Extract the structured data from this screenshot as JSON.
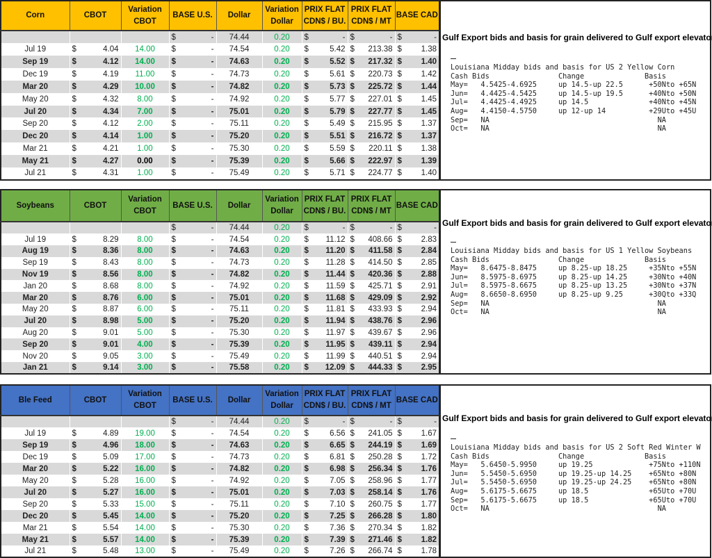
{
  "columns": [
    "CBOT",
    "Variation CBOT",
    "BASE U.S.",
    "Dollar",
    "Variation Dollar",
    "PRIX FLAT CDN$ / BU.",
    "PRIX FLAT CDN$ / MT",
    "BASE CAD"
  ],
  "columns_split": [
    [
      "CBOT"
    ],
    [
      "Variation",
      "CBOT"
    ],
    [
      "BASE U.S."
    ],
    [
      "Dollar"
    ],
    [
      "Variation",
      "Dollar"
    ],
    [
      "PRIX FLAT",
      "CDN$ / BU."
    ],
    [
      "PRIX FLAT",
      "CDN$ / MT"
    ],
    [
      "BASE CAD"
    ]
  ],
  "currency_symbol": "$",
  "dash": "-",
  "sections": [
    {
      "label": "Corn",
      "header_color": "#FFC000",
      "top_row": {
        "dollar": "74.44",
        "var_dollar": "0.20"
      },
      "rows": [
        {
          "month": "Jul 19",
          "cbot": "4.04",
          "var_cbot": "14.00",
          "dollar": "74.54",
          "var_dollar": "0.20",
          "bu": "5.42",
          "mt": "213.38",
          "cad": "1.38"
        },
        {
          "month": "Sep 19",
          "cbot": "4.12",
          "var_cbot": "14.00",
          "dollar": "74.63",
          "var_dollar": "0.20",
          "bu": "5.52",
          "mt": "217.32",
          "cad": "1.40"
        },
        {
          "month": "Dec 19",
          "cbot": "4.19",
          "var_cbot": "11.00",
          "dollar": "74.73",
          "var_dollar": "0.20",
          "bu": "5.61",
          "mt": "220.73",
          "cad": "1.42"
        },
        {
          "month": "Mar 20",
          "cbot": "4.29",
          "var_cbot": "10.00",
          "dollar": "74.82",
          "var_dollar": "0.20",
          "bu": "5.73",
          "mt": "225.72",
          "cad": "1.44"
        },
        {
          "month": "May 20",
          "cbot": "4.32",
          "var_cbot": "8.00",
          "dollar": "74.92",
          "var_dollar": "0.20",
          "bu": "5.77",
          "mt": "227.01",
          "cad": "1.45"
        },
        {
          "month": "Jul 20",
          "cbot": "4.34",
          "var_cbot": "7.00",
          "dollar": "75.01",
          "var_dollar": "0.20",
          "bu": "5.79",
          "mt": "227.77",
          "cad": "1.45"
        },
        {
          "month": "Sep 20",
          "cbot": "4.12",
          "var_cbot": "2.00",
          "dollar": "75.11",
          "var_dollar": "0.20",
          "bu": "5.49",
          "mt": "215.95",
          "cad": "1.37"
        },
        {
          "month": "Dec 20",
          "cbot": "4.14",
          "var_cbot": "1.00",
          "dollar": "75.20",
          "var_dollar": "0.20",
          "bu": "5.51",
          "mt": "216.72",
          "cad": "1.37"
        },
        {
          "month": "Mar 21",
          "cbot": "4.21",
          "var_cbot": "1.00",
          "dollar": "75.30",
          "var_dollar": "0.20",
          "bu": "5.59",
          "mt": "220.11",
          "cad": "1.38"
        },
        {
          "month": "May 21",
          "cbot": "4.27",
          "var_cbot": "0.00",
          "dollar": "75.39",
          "var_dollar": "0.20",
          "bu": "5.66",
          "mt": "222.97",
          "cad": "1.39"
        },
        {
          "month": "Jul 21",
          "cbot": "4.31",
          "var_cbot": "1.00",
          "dollar": "75.49",
          "var_dollar": "0.20",
          "bu": "5.71",
          "mt": "224.77",
          "cad": "1.40"
        }
      ],
      "gulf": {
        "title": "Gulf Export bids and basis for grain delivered to Gulf export elevators",
        "heading": "Louisiana Midday bids and basis for US 2 Yellow Corn",
        "col_headers": {
          "bids": "Cash Bids",
          "change": "Change",
          "basis": "Basis"
        },
        "lines": [
          {
            "month": "May=",
            "bid": "4.5425-4.6925",
            "change": "up 14.5-up 22.5",
            "basis": "+50Nto +65N"
          },
          {
            "month": "Jun=",
            "bid": "4.4425-4.5425",
            "change": "up 14.5-up 19.5",
            "basis": "+40Nto +50N"
          },
          {
            "month": "Jul=",
            "bid": "4.4425-4.4925",
            "change": "up 14.5",
            "basis": "+40Nto +45N"
          },
          {
            "month": "Aug=",
            "bid": "4.4150-4.5750",
            "change": "up 12-up 14",
            "basis": "+29Uto +45U"
          },
          {
            "month": "Sep=",
            "bid": "NA",
            "change": "",
            "basis": "NA"
          },
          {
            "month": "Oct=",
            "bid": "NA",
            "change": "",
            "basis": "NA"
          }
        ]
      }
    },
    {
      "label": "Soybeans",
      "header_color": "#70AD47",
      "top_row": {
        "dollar": "74.44",
        "var_dollar": "0.20"
      },
      "rows": [
        {
          "month": "Jul 19",
          "cbot": "8.29",
          "var_cbot": "8.00",
          "dollar": "74.54",
          "var_dollar": "0.20",
          "bu": "11.12",
          "mt": "408.66",
          "cad": "2.83"
        },
        {
          "month": "Aug 19",
          "cbot": "8.36",
          "var_cbot": "8.00",
          "dollar": "74.63",
          "var_dollar": "0.20",
          "bu": "11.20",
          "mt": "411.58",
          "cad": "2.84"
        },
        {
          "month": "Sep 19",
          "cbot": "8.43",
          "var_cbot": "8.00",
          "dollar": "74.73",
          "var_dollar": "0.20",
          "bu": "11.28",
          "mt": "414.50",
          "cad": "2.85"
        },
        {
          "month": "Nov 19",
          "cbot": "8.56",
          "var_cbot": "8.00",
          "dollar": "74.82",
          "var_dollar": "0.20",
          "bu": "11.44",
          "mt": "420.36",
          "cad": "2.88"
        },
        {
          "month": "Jan 20",
          "cbot": "8.68",
          "var_cbot": "8.00",
          "dollar": "74.92",
          "var_dollar": "0.20",
          "bu": "11.59",
          "mt": "425.71",
          "cad": "2.91"
        },
        {
          "month": "Mar 20",
          "cbot": "8.76",
          "var_cbot": "6.00",
          "dollar": "75.01",
          "var_dollar": "0.20",
          "bu": "11.68",
          "mt": "429.09",
          "cad": "2.92"
        },
        {
          "month": "May 20",
          "cbot": "8.87",
          "var_cbot": "6.00",
          "dollar": "75.11",
          "var_dollar": "0.20",
          "bu": "11.81",
          "mt": "433.93",
          "cad": "2.94"
        },
        {
          "month": "Jul 20",
          "cbot": "8.98",
          "var_cbot": "5.00",
          "dollar": "75.20",
          "var_dollar": "0.20",
          "bu": "11.94",
          "mt": "438.76",
          "cad": "2.96"
        },
        {
          "month": "Aug 20",
          "cbot": "9.01",
          "var_cbot": "5.00",
          "dollar": "75.30",
          "var_dollar": "0.20",
          "bu": "11.97",
          "mt": "439.67",
          "cad": "2.96"
        },
        {
          "month": "Sep 20",
          "cbot": "9.01",
          "var_cbot": "4.00",
          "dollar": "75.39",
          "var_dollar": "0.20",
          "bu": "11.95",
          "mt": "439.11",
          "cad": "2.94"
        },
        {
          "month": "Nov 20",
          "cbot": "9.05",
          "var_cbot": "3.00",
          "dollar": "75.49",
          "var_dollar": "0.20",
          "bu": "11.99",
          "mt": "440.51",
          "cad": "2.94"
        },
        {
          "month": "Jan 21",
          "cbot": "9.14",
          "var_cbot": "3.00",
          "dollar": "75.58",
          "var_dollar": "0.20",
          "bu": "12.09",
          "mt": "444.33",
          "cad": "2.95"
        }
      ],
      "gulf": {
        "title": "Gulf Export bids and basis for grain delivered to Gulf export elevators",
        "heading": "Louisiana Midday bids and basis for US 1 Yellow Soybeans",
        "col_headers": {
          "bids": "Cash Bids",
          "change": "Change",
          "basis": "Basis"
        },
        "lines": [
          {
            "month": "May=",
            "bid": "8.6475-8.8475",
            "change": "up 8.25-up 18.25",
            "basis": "+35Nto +55N"
          },
          {
            "month": "Jun=",
            "bid": "8.5975-8.6975",
            "change": "up 8.25-up 14.25",
            "basis": "+30Nto +40N"
          },
          {
            "month": "Jul=",
            "bid": "8.5975-8.6675",
            "change": "up 8.25-up 13.25",
            "basis": "+30Nto +37N"
          },
          {
            "month": "Aug=",
            "bid": "8.6650-8.6950",
            "change": "up 8.25-up 9.25",
            "basis": "+30Qto +33Q"
          },
          {
            "month": "Sep=",
            "bid": "NA",
            "change": "",
            "basis": "NA"
          },
          {
            "month": "Oct=",
            "bid": "NA",
            "change": "",
            "basis": "NA"
          }
        ]
      }
    },
    {
      "label": "Ble Feed",
      "header_color": "#4472C4",
      "top_row": {
        "dollar": "74.44",
        "var_dollar": "0.20"
      },
      "rows": [
        {
          "month": "Jul 19",
          "cbot": "4.89",
          "var_cbot": "19.00",
          "dollar": "74.54",
          "var_dollar": "0.20",
          "bu": "6.56",
          "mt": "241.05",
          "cad": "1.67"
        },
        {
          "month": "Sep 19",
          "cbot": "4.96",
          "var_cbot": "18.00",
          "dollar": "74.63",
          "var_dollar": "0.20",
          "bu": "6.65",
          "mt": "244.19",
          "cad": "1.69"
        },
        {
          "month": "Dec 19",
          "cbot": "5.09",
          "var_cbot": "17.00",
          "dollar": "74.73",
          "var_dollar": "0.20",
          "bu": "6.81",
          "mt": "250.28",
          "cad": "1.72"
        },
        {
          "month": "Mar 20",
          "cbot": "5.22",
          "var_cbot": "16.00",
          "dollar": "74.82",
          "var_dollar": "0.20",
          "bu": "6.98",
          "mt": "256.34",
          "cad": "1.76"
        },
        {
          "month": "May 20",
          "cbot": "5.28",
          "var_cbot": "16.00",
          "dollar": "74.92",
          "var_dollar": "0.20",
          "bu": "7.05",
          "mt": "258.96",
          "cad": "1.77"
        },
        {
          "month": "Jul 20",
          "cbot": "5.27",
          "var_cbot": "16.00",
          "dollar": "75.01",
          "var_dollar": "0.20",
          "bu": "7.03",
          "mt": "258.14",
          "cad": "1.76"
        },
        {
          "month": "Sep 20",
          "cbot": "5.33",
          "var_cbot": "15.00",
          "dollar": "75.11",
          "var_dollar": "0.20",
          "bu": "7.10",
          "mt": "260.75",
          "cad": "1.77"
        },
        {
          "month": "Dec 20",
          "cbot": "5.45",
          "var_cbot": "14.00",
          "dollar": "75.20",
          "var_dollar": "0.20",
          "bu": "7.25",
          "mt": "266.28",
          "cad": "1.80"
        },
        {
          "month": "Mar 21",
          "cbot": "5.54",
          "var_cbot": "14.00",
          "dollar": "75.30",
          "var_dollar": "0.20",
          "bu": "7.36",
          "mt": "270.34",
          "cad": "1.82"
        },
        {
          "month": "May 21",
          "cbot": "5.57",
          "var_cbot": "14.00",
          "dollar": "75.39",
          "var_dollar": "0.20",
          "bu": "7.39",
          "mt": "271.46",
          "cad": "1.82"
        },
        {
          "month": "Jul 21",
          "cbot": "5.48",
          "var_cbot": "13.00",
          "dollar": "75.49",
          "var_dollar": "0.20",
          "bu": "7.26",
          "mt": "266.74",
          "cad": "1.78"
        }
      ],
      "gulf": {
        "title": "Gulf Export bids and basis for grain delivered to Gulf export elevators",
        "heading": "Louisiana Midday bids and basis for US 2 Soft Red Winter W",
        "col_headers": {
          "bids": "Cash Bids",
          "change": "Change",
          "basis": "Basis"
        },
        "lines": [
          {
            "month": "May=",
            "bid": "5.6450-5.9950",
            "change": "up 19.25",
            "basis": "+75Nto +110N"
          },
          {
            "month": "Jun=",
            "bid": "5.5450-5.6950",
            "change": "up 19.25-up 14.25",
            "basis": "+65Nto +80N"
          },
          {
            "month": "Jul=",
            "bid": "5.5450-5.6950",
            "change": "up 19.25-up 24.25",
            "basis": "+65Nto +80N"
          },
          {
            "month": "Aug=",
            "bid": "5.6175-5.6675",
            "change": "up 18.5",
            "basis": "+65Uto +70U"
          },
          {
            "month": "Sep=",
            "bid": "5.6175-5.6675",
            "change": "up 18.5",
            "basis": "+65Uto +70U"
          },
          {
            "month": "Oct=",
            "bid": "NA",
            "change": "",
            "basis": "NA"
          }
        ]
      }
    }
  ]
}
